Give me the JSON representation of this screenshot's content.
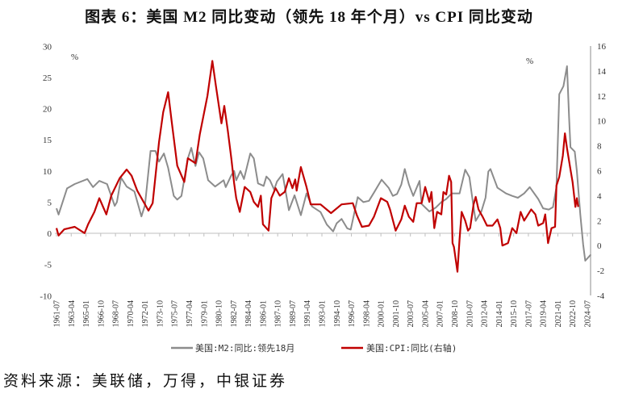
{
  "title": "图表 6：美国 M2 同比变动（领先 18 年个月）vs CPI 同比变动",
  "source": "资料来源：美联储，万得，中银证券",
  "colors": {
    "m2": "#8c8c8c",
    "cpi": "#c00000",
    "axis": "#bfbfbf"
  },
  "chart_data": {
    "type": "line",
    "left_axis": {
      "unit_label": "%",
      "ylim": [
        -10,
        30
      ],
      "ticks": [
        -10,
        -5,
        0,
        5,
        10,
        15,
        20,
        25,
        30
      ]
    },
    "right_axis": {
      "unit_label": "%",
      "ylim": [
        -4,
        16
      ],
      "ticks": [
        -4,
        -2,
        0,
        2,
        4,
        6,
        8,
        10,
        12,
        14,
        16
      ]
    },
    "x_ticks": [
      "1961-07",
      "1963-04",
      "1965-01",
      "1966-10",
      "1968-07",
      "1970-04",
      "1972-01",
      "1973-10",
      "1975-07",
      "1977-04",
      "1979-01",
      "1980-10",
      "1982-07",
      "1984-04",
      "1986-01",
      "1987-10",
      "1989-07",
      "1991-04",
      "1993-01",
      "1994-10",
      "1996-07",
      "1998-04",
      "2000-01",
      "2001-10",
      "2003-07",
      "2005-04",
      "2007-01",
      "2008-10",
      "2010-07",
      "2012-04",
      "2014-01",
      "2015-10",
      "2017-07",
      "2019-04",
      "2021-01",
      "2022-10",
      "2024-07"
    ],
    "legend_position": "bottom",
    "grid": false,
    "series": [
      {
        "name": "美国:M2:同比:领先18月",
        "axis": "left",
        "points": [
          [
            "1961-07",
            4.0
          ],
          [
            "1961-10",
            3.0
          ],
          [
            "1962-10",
            7.2
          ],
          [
            "1963-09",
            7.9
          ],
          [
            "1965-03",
            8.7
          ],
          [
            "1965-11",
            7.4
          ],
          [
            "1966-08",
            8.4
          ],
          [
            "1967-07",
            7.9
          ],
          [
            "1968-06",
            4.4
          ],
          [
            "1968-09",
            5
          ],
          [
            "1969-03",
            8.9
          ],
          [
            "1969-11",
            7.5
          ],
          [
            "1970-10",
            6.7
          ],
          [
            "1971-08",
            2.7
          ],
          [
            "1972-01",
            4.5
          ],
          [
            "1972-09",
            13.2
          ],
          [
            "1973-04",
            13.2
          ],
          [
            "1973-09",
            11.5
          ],
          [
            "1974-04",
            12.8
          ],
          [
            "1974-10",
            10.5
          ],
          [
            "1975-06",
            6
          ],
          [
            "1975-11",
            5.4
          ],
          [
            "1976-05",
            6
          ],
          [
            "1977-02",
            12
          ],
          [
            "1977-07",
            13.7
          ],
          [
            "1978-01",
            10.8
          ],
          [
            "1978-06",
            13
          ],
          [
            "1978-12",
            12
          ],
          [
            "1979-07",
            8.5
          ],
          [
            "1980-05",
            7.5
          ],
          [
            "1981-05",
            8.5
          ],
          [
            "1981-08",
            7.4
          ],
          [
            "1982-04",
            9.3
          ],
          [
            "1982-08",
            10
          ],
          [
            "1982-11",
            8.5
          ],
          [
            "1983-05",
            10
          ],
          [
            "1983-10",
            8.7
          ],
          [
            "1984-07",
            12.8
          ],
          [
            "1984-12",
            12
          ],
          [
            "1985-06",
            8
          ],
          [
            "1986-02",
            7.6
          ],
          [
            "1986-06",
            9.1
          ],
          [
            "1986-11",
            8.5
          ],
          [
            "1987-05",
            7
          ],
          [
            "1987-09",
            8.3
          ],
          [
            "1988-05",
            9.5
          ],
          [
            "1989-02",
            3.7
          ],
          [
            "1989-10",
            6.1
          ],
          [
            "1990-07",
            2.9
          ],
          [
            "1991-03",
            6.4
          ],
          [
            "1991-11",
            4.3
          ],
          [
            "1992-11",
            3.4
          ],
          [
            "1993-08",
            1.4
          ],
          [
            "1994-05",
            0.3
          ],
          [
            "1994-10",
            1.6
          ],
          [
            "1995-05",
            2.3
          ],
          [
            "1996-01",
            0.8
          ],
          [
            "1996-06",
            0.6
          ],
          [
            "1997-04",
            5.8
          ],
          [
            "1997-12",
            5
          ],
          [
            "1998-08",
            5.2
          ],
          [
            "1999-03",
            6.5
          ],
          [
            "2000-02",
            8.6
          ],
          [
            "2000-12",
            7.3
          ],
          [
            "2001-06",
            6
          ],
          [
            "2001-12",
            6.3
          ],
          [
            "2002-06",
            7.8
          ],
          [
            "2002-11",
            10.3
          ],
          [
            "2003-05",
            7.8
          ],
          [
            "2003-11",
            6
          ],
          [
            "2004-08",
            8.4
          ],
          [
            "2004-11",
            4.7
          ],
          [
            "2005-10",
            3.5
          ],
          [
            "2006-07",
            4.1
          ],
          [
            "2007-03",
            5
          ],
          [
            "2007-10",
            5.5
          ],
          [
            "2008-06",
            6.4
          ],
          [
            "2009-05",
            6.4
          ],
          [
            "2010-01",
            10.2
          ],
          [
            "2010-07",
            9
          ],
          [
            "2011-01",
            4.2
          ],
          [
            "2011-04",
            2
          ],
          [
            "2011-12",
            3.5
          ],
          [
            "2012-06",
            5.7
          ],
          [
            "2012-10",
            9.9
          ],
          [
            "2013-01",
            10.3
          ],
          [
            "2013-07",
            8.5
          ],
          [
            "2013-11",
            7.3
          ],
          [
            "2014-11",
            6.4
          ],
          [
            "2015-08",
            6
          ],
          [
            "2016-04",
            5.7
          ],
          [
            "2017-01",
            6.4
          ],
          [
            "2017-09",
            7.4
          ],
          [
            "2018-09",
            5.5
          ],
          [
            "2019-04",
            4
          ],
          [
            "2019-12",
            3.8
          ],
          [
            "2020-06",
            4.2
          ],
          [
            "2020-11",
            7.4
          ],
          [
            "2021-03",
            22.3
          ],
          [
            "2021-09",
            23.6
          ],
          [
            "2022-02",
            26.8
          ],
          [
            "2022-05",
            18.5
          ],
          [
            "2022-07",
            13.8
          ],
          [
            "2023-01",
            13.1
          ],
          [
            "2023-04",
            10
          ],
          [
            "2023-09",
            3
          ],
          [
            "2024-01",
            -1.8
          ],
          [
            "2024-04",
            -4.4
          ],
          [
            "2024-12",
            -3.4
          ]
        ]
      },
      {
        "name": "美国:CPI:同比(右轴)",
        "axis": "right",
        "points": [
          [
            "1961-07",
            1.4
          ],
          [
            "1961-10",
            0.8
          ],
          [
            "1962-06",
            1.3
          ],
          [
            "1963-09",
            1.5
          ],
          [
            "1964-11",
            1.0
          ],
          [
            "1965-04",
            1.7
          ],
          [
            "1966-01",
            2.7
          ],
          [
            "1966-08",
            3.8
          ],
          [
            "1967-06",
            2.5
          ],
          [
            "1968-01",
            4
          ],
          [
            "1969-01",
            5.4
          ],
          [
            "1969-11",
            6.1
          ],
          [
            "1970-06",
            5.6
          ],
          [
            "1971-02",
            4.4
          ],
          [
            "1972-01",
            3.3
          ],
          [
            "1972-06",
            2.8
          ],
          [
            "1972-12",
            3.4
          ],
          [
            "1973-09",
            8.3
          ],
          [
            "1974-03",
            10.7
          ],
          [
            "1974-10",
            12.3
          ],
          [
            "1975-03",
            10
          ],
          [
            "1975-11",
            6.4
          ],
          [
            "1976-09",
            5.1
          ],
          [
            "1977-02",
            7
          ],
          [
            "1978-01",
            6.6
          ],
          [
            "1978-07",
            8.9
          ],
          [
            "1979-06",
            12
          ],
          [
            "1980-01",
            14.8
          ],
          [
            "1980-06",
            12.8
          ],
          [
            "1981-02",
            9.8
          ],
          [
            "1981-06",
            11.2
          ],
          [
            "1981-11",
            9.2
          ],
          [
            "1982-04",
            7
          ],
          [
            "1982-08",
            5.0
          ],
          [
            "1982-11",
            3.8
          ],
          [
            "1983-04",
            2.7
          ],
          [
            "1983-11",
            4.7
          ],
          [
            "1984-07",
            4.3
          ],
          [
            "1984-12",
            3.5
          ],
          [
            "1985-06",
            3.1
          ],
          [
            "1985-10",
            4
          ],
          [
            "1986-01",
            1.7
          ],
          [
            "1986-09",
            1.2
          ],
          [
            "1987-01",
            3.8
          ],
          [
            "1987-07",
            4.6
          ],
          [
            "1988-01",
            4
          ],
          [
            "1988-08",
            4.3
          ],
          [
            "1989-02",
            5.4
          ],
          [
            "1989-07",
            4.6
          ],
          [
            "1989-11",
            5.3
          ],
          [
            "1990-01",
            4.4
          ],
          [
            "1990-07",
            6.3
          ],
          [
            "1991-03",
            4.7
          ],
          [
            "1991-09",
            3.3
          ],
          [
            "1992-11",
            3.3
          ],
          [
            "1994-02",
            2.6
          ],
          [
            "1995-05",
            3.3
          ],
          [
            "1996-09",
            3.4
          ],
          [
            "1997-03",
            2.4
          ],
          [
            "1997-10",
            1.5
          ],
          [
            "1998-08",
            1.6
          ],
          [
            "1999-03",
            2.3
          ],
          [
            "2000-01",
            3.8
          ],
          [
            "2000-10",
            3.5
          ],
          [
            "2001-02",
            2.9
          ],
          [
            "2001-10",
            1.2
          ],
          [
            "2002-06",
            2.1
          ],
          [
            "2002-11",
            3.2
          ],
          [
            "2003-05",
            2.3
          ],
          [
            "2003-11",
            1.9
          ],
          [
            "2004-04",
            3.4
          ],
          [
            "2004-11",
            3.4
          ],
          [
            "2005-04",
            4.7
          ],
          [
            "2005-10",
            3.5
          ],
          [
            "2006-01",
            4.3
          ],
          [
            "2006-05",
            1.4
          ],
          [
            "2006-09",
            2.7
          ],
          [
            "2007-03",
            2.5
          ],
          [
            "2007-06",
            4.3
          ],
          [
            "2007-10",
            4.1
          ],
          [
            "2008-02",
            5.6
          ],
          [
            "2008-05",
            5.1
          ],
          [
            "2008-07",
            0.2
          ],
          [
            "2008-09",
            -0.1
          ],
          [
            "2009-02",
            -2.1
          ],
          [
            "2009-05",
            0.5
          ],
          [
            "2009-08",
            2.7
          ],
          [
            "2010-01",
            2.0
          ],
          [
            "2010-05",
            1.2
          ],
          [
            "2010-08",
            1.4
          ],
          [
            "2011-01",
            3.3
          ],
          [
            "2011-04",
            3.9
          ],
          [
            "2011-08",
            2.9
          ],
          [
            "2012-02",
            2.3
          ],
          [
            "2012-08",
            1.6
          ],
          [
            "2013-04",
            1.6
          ],
          [
            "2013-11",
            2.1
          ],
          [
            "2014-03",
            1.4
          ],
          [
            "2014-06",
            0
          ],
          [
            "2015-02",
            0.2
          ],
          [
            "2015-08",
            1.4
          ],
          [
            "2016-02",
            1.0
          ],
          [
            "2016-08",
            2.7
          ],
          [
            "2017-01",
            2.0
          ],
          [
            "2017-11",
            2.9
          ],
          [
            "2018-05",
            2.5
          ],
          [
            "2018-09",
            1.6
          ],
          [
            "2019-04",
            1.8
          ],
          [
            "2019-07",
            2.5
          ],
          [
            "2019-11",
            0.2
          ],
          [
            "2020-04",
            1.4
          ],
          [
            "2020-09",
            1.5
          ],
          [
            "2020-11",
            4.8
          ],
          [
            "2021-03",
            5.5
          ],
          [
            "2021-08",
            7.2
          ],
          [
            "2021-11",
            9.0
          ],
          [
            "2022-02",
            7.8
          ],
          [
            "2022-07",
            6.1
          ],
          [
            "2022-10",
            5.1
          ],
          [
            "2023-02",
            3.1
          ],
          [
            "2023-04",
            3.8
          ],
          [
            "2023-06",
            3.1
          ]
        ]
      }
    ]
  }
}
